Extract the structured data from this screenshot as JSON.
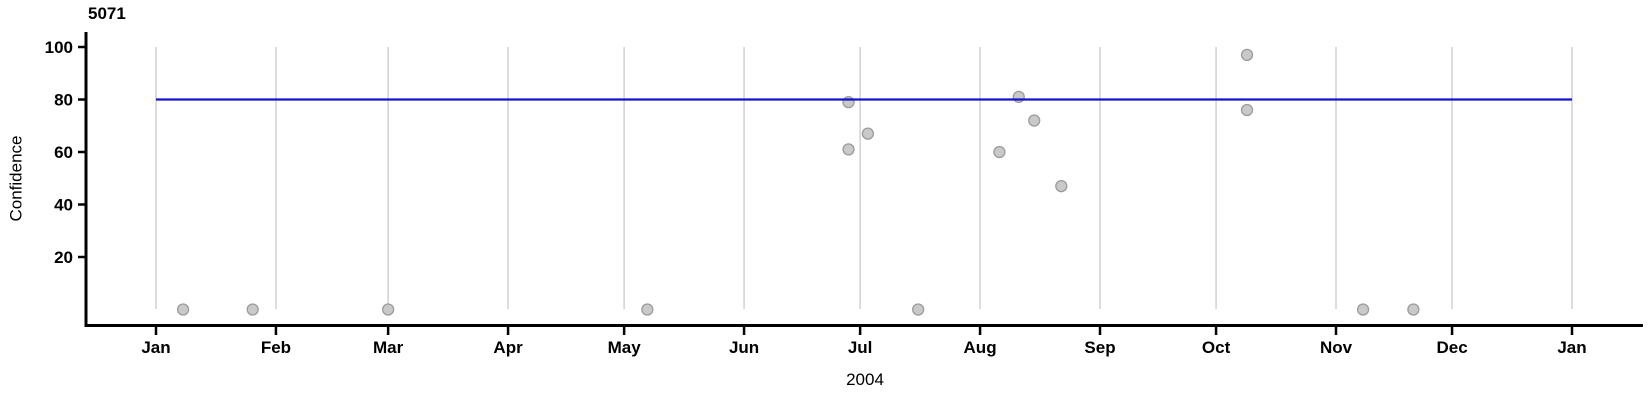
{
  "chart_data": {
    "type": "scatter",
    "title": "5071",
    "ylabel": "Confidence",
    "xlabel": "2004",
    "x_axis": {
      "tick_labels": [
        "Jan",
        "Feb",
        "Mar",
        "Apr",
        "May",
        "Jun",
        "Jul",
        "Aug",
        "Sep",
        "Oct",
        "Nov",
        "Dec",
        "Jan"
      ],
      "start": "2004-01-01",
      "end": "2005-01-01"
    },
    "y_axis": {
      "tick_labels": [
        "20",
        "40",
        "60",
        "80",
        "100"
      ],
      "ticks": [
        20,
        40,
        60,
        80,
        100
      ],
      "range": [
        0,
        100
      ]
    },
    "grid": "vertical-only",
    "legend": "none",
    "reference_line": {
      "y": 80
    },
    "points": [
      {
        "date": "2004-01-08",
        "confidence": 0
      },
      {
        "date": "2004-01-26",
        "confidence": 0
      },
      {
        "date": "2004-03-01",
        "confidence": 0
      },
      {
        "date": "2004-05-07",
        "confidence": 0
      },
      {
        "date": "2004-06-28",
        "confidence": 79
      },
      {
        "date": "2004-06-28",
        "confidence": 61
      },
      {
        "date": "2004-07-03",
        "confidence": 67
      },
      {
        "date": "2004-07-16",
        "confidence": 0
      },
      {
        "date": "2004-08-06",
        "confidence": 60
      },
      {
        "date": "2004-08-11",
        "confidence": 81
      },
      {
        "date": "2004-08-15",
        "confidence": 72
      },
      {
        "date": "2004-08-22",
        "confidence": 47
      },
      {
        "date": "2004-10-09",
        "confidence": 97
      },
      {
        "date": "2004-10-09",
        "confidence": 76
      },
      {
        "date": "2004-11-08",
        "confidence": 0
      },
      {
        "date": "2004-11-21",
        "confidence": 0
      }
    ],
    "colors": {
      "reference_line": "#1414cc",
      "point_fill": "#c9c9c9",
      "point_stroke": "#9c9c9c",
      "gridline": "#d4d4d4",
      "axis": "#000000",
      "text": "#000000"
    }
  }
}
